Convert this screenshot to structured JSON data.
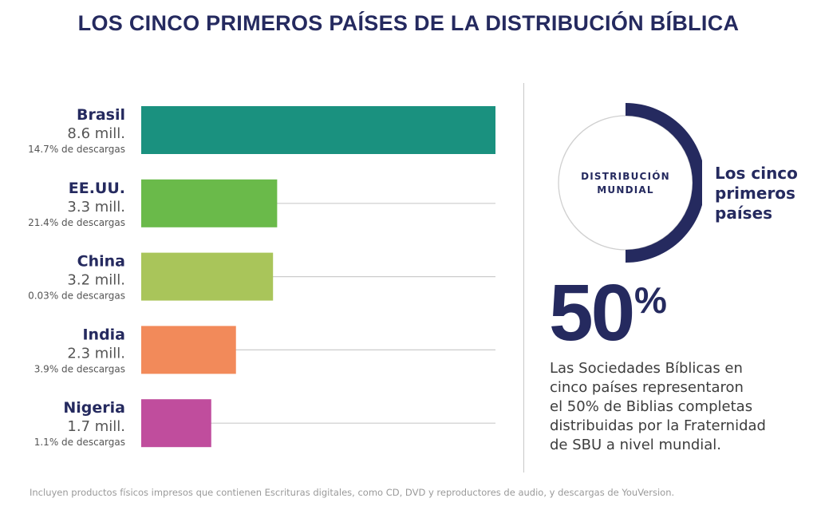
{
  "title": "LOS CINCO PRIMEROS PAÍSES DE LA DISTRIBUCIÓN BÍBLICA",
  "chart_data": {
    "type": "bar",
    "orientation": "horizontal",
    "categories": [
      "Brasil",
      "EE.UU.",
      "China",
      "India",
      "Nigeria"
    ],
    "values": [
      8.6,
      3.3,
      3.2,
      2.3,
      1.7
    ],
    "value_labels": [
      "8.6 mill.",
      "3.3 mill.",
      "3.2 mill.",
      "2.3 mill.",
      "1.7 mill."
    ],
    "download_labels": [
      "14.7% de descargas",
      "21.4% de descargas",
      "0.03% de descargas",
      "3.9% de descargas",
      "1.1% de descargas"
    ],
    "colors": [
      "#1a917f",
      "#6aba4a",
      "#a9c55a",
      "#f28a5a",
      "#c04d9d"
    ],
    "xlim": [
      0,
      8.6
    ],
    "grid": true
  },
  "donut": {
    "label_lines": [
      "DISTRIBUCIÓN",
      "MUNDIAL"
    ],
    "highlight_fraction": 0.5,
    "highlight_color": "#252a5f",
    "side_label_lines": [
      "Los cinco",
      "primeros",
      "países"
    ]
  },
  "highlight": {
    "number": "50",
    "percent_sign": "%",
    "description_lines": [
      "Las Sociedades Bíblicas en",
      "cinco países representaron",
      "el 50% de Biblias completas",
      "distribuidas por la Fraternidad",
      "de SBU a nivel mundial."
    ]
  },
  "footnote": "Incluyen productos físicos impresos que contienen Escrituras digitales, como CD, DVD y reproductores de audio, y descargas de YouVersion.",
  "colors": {
    "title": "#252a5f",
    "gridline": "#cccccc"
  }
}
